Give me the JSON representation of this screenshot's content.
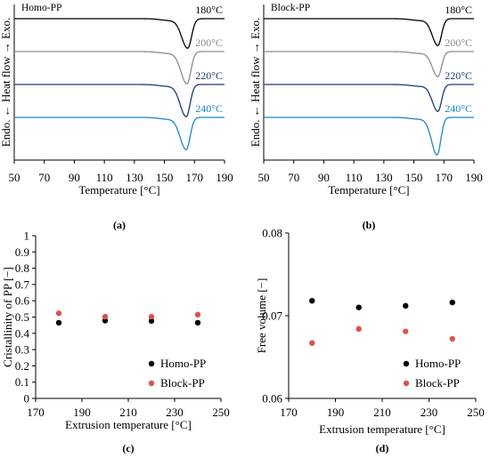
{
  "chart_data": [
    {
      "type": "line",
      "panel_label": "(a)",
      "title": "Homo-PP",
      "xlabel": "Temperature [°C]",
      "ylabel": "Endo. ← Heat flow → Exo.",
      "xlim": [
        50,
        190
      ],
      "xticks": [
        "50",
        "70",
        "90",
        "110",
        "130",
        "150",
        "170",
        "190"
      ],
      "grid": false,
      "series": [
        {
          "name": "180°C",
          "color": "#000000",
          "peak_x": 165.5,
          "peak_depth": 33,
          "width": 3.2
        },
        {
          "name": "200°C",
          "color": "#8c8c8c",
          "peak_x": 165.0,
          "peak_depth": 36,
          "width": 3.2
        },
        {
          "name": "220°C",
          "color": "#1f3b73",
          "peak_x": 164.5,
          "peak_depth": 36,
          "width": 3.2
        },
        {
          "name": "240°C",
          "color": "#1b86c7",
          "peak_x": 164.5,
          "peak_depth": 36,
          "width": 3.2
        }
      ]
    },
    {
      "type": "line",
      "panel_label": "(b)",
      "title": "Block-PP",
      "xlabel": "Temperature [°C]",
      "ylabel": "Endo. ← Heat flow → Exo.",
      "xlim": [
        50,
        190
      ],
      "xticks": [
        "50",
        "70",
        "90",
        "110",
        "130",
        "150",
        "170",
        "190"
      ],
      "grid": false,
      "series": [
        {
          "name": "180°C",
          "color": "#000000",
          "peak_x": 166.0,
          "peak_depth": 30,
          "width": 3.0
        },
        {
          "name": "200°C",
          "color": "#8c8c8c",
          "peak_x": 166.0,
          "peak_depth": 28,
          "width": 3.0
        },
        {
          "name": "220°C",
          "color": "#1f3b73",
          "peak_x": 166.0,
          "peak_depth": 30,
          "width": 3.0
        },
        {
          "name": "240°C",
          "color": "#1b86c7",
          "peak_x": 165.5,
          "peak_depth": 42,
          "width": 3.0
        }
      ]
    },
    {
      "type": "scatter",
      "panel_label": "(c)",
      "xlabel": "Extrusion temperature [°C]",
      "ylabel": "Cristallinity of PP [−]",
      "xlim": [
        170,
        250
      ],
      "ylim": [
        0,
        1
      ],
      "xticks": [
        "170",
        "190",
        "210",
        "230",
        "250"
      ],
      "yticks": [
        "0",
        "0.1",
        "0.2",
        "0.3",
        "0.4",
        "0.5",
        "0.6",
        "0.7",
        "0.8",
        "0.9",
        "1"
      ],
      "legend": "bottom-right",
      "grid": false,
      "series": [
        {
          "name": "Homo-PP",
          "color": "#000000",
          "x": [
            180,
            200,
            220,
            240
          ],
          "y": [
            0.465,
            0.478,
            0.476,
            0.465
          ]
        },
        {
          "name": "Block-PP",
          "color": "#d9534f",
          "x": [
            180,
            200,
            220,
            240
          ],
          "y": [
            0.523,
            0.502,
            0.503,
            0.515
          ]
        }
      ]
    },
    {
      "type": "scatter",
      "panel_label": "(d)",
      "xlabel": "Extrusion temperature [°C]",
      "ylabel": "Free volume [−]",
      "xlim": [
        170,
        250
      ],
      "ylim": [
        0.06,
        0.08
      ],
      "xticks": [
        "170",
        "190",
        "210",
        "230",
        "250"
      ],
      "yticks": [
        "0.06",
        "0.07",
        "0.08"
      ],
      "legend": "bottom-right",
      "grid": false,
      "series": [
        {
          "name": "Homo-PP",
          "color": "#000000",
          "x": [
            180,
            200,
            220,
            240
          ],
          "y": [
            0.0718,
            0.071,
            0.0712,
            0.0716
          ]
        },
        {
          "name": "Block-PP",
          "color": "#d9534f",
          "x": [
            180,
            200,
            220,
            240
          ],
          "y": [
            0.0667,
            0.0684,
            0.0681,
            0.0672
          ]
        }
      ]
    }
  ]
}
